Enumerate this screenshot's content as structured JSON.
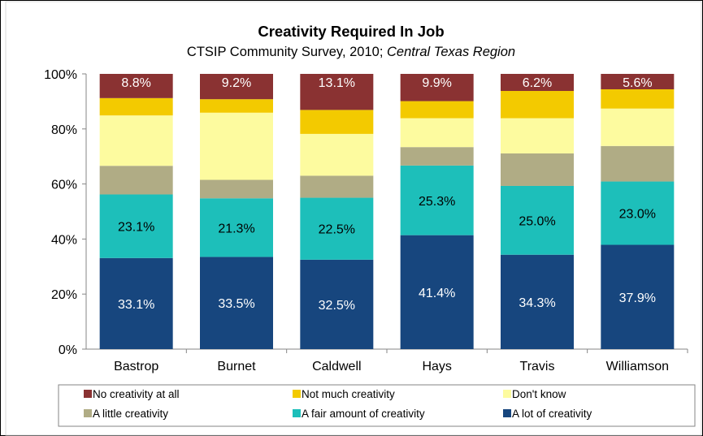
{
  "chart_data": {
    "type": "bar",
    "stacked": true,
    "title": "Creativity Required In Job",
    "subtitle_plain": "CTSIP Community Survey, 2010; ",
    "subtitle_italic": "Central Texas Region",
    "ylim": [
      0,
      100
    ],
    "yticks": [
      "0%",
      "20%",
      "40%",
      "60%",
      "80%",
      "100%"
    ],
    "categories": [
      "Bastrop",
      "Burnet",
      "Caldwell",
      "Hays",
      "Travis",
      "Williamson"
    ],
    "series": [
      {
        "name": "A lot of creativity",
        "color": "#17467E",
        "values": [
          33.1,
          33.5,
          32.5,
          41.4,
          34.3,
          37.9
        ],
        "labels": [
          "33.1%",
          "33.5%",
          "32.5%",
          "41.4%",
          "34.3%",
          "37.9%"
        ]
      },
      {
        "name": "A fair amount of creativity",
        "color": "#1DBFBA",
        "values": [
          23.1,
          21.3,
          22.5,
          25.3,
          25.0,
          23.0
        ],
        "labels": [
          "23.1%",
          "21.3%",
          "22.5%",
          "25.3%",
          "25.0%",
          "23.0%"
        ]
      },
      {
        "name": "A little creativity",
        "color": "#B0AC85",
        "values": [
          10.4,
          6.7,
          8.0,
          6.7,
          11.8,
          12.9
        ]
      },
      {
        "name": "Don't know",
        "color": "#FDFB9F",
        "values": [
          18.3,
          24.4,
          15.2,
          10.5,
          12.8,
          13.6
        ]
      },
      {
        "name": "Not much creativity",
        "color": "#F3CA00",
        "values": [
          6.3,
          4.9,
          8.7,
          6.2,
          9.9,
          7.0
        ]
      },
      {
        "name": "No creativity at all",
        "color": "#8A3232",
        "values": [
          8.8,
          9.2,
          13.1,
          9.9,
          6.2,
          5.6
        ],
        "labels": [
          "8.8%",
          "9.2%",
          "13.1%",
          "9.9%",
          "6.2%",
          "5.6%"
        ]
      }
    ],
    "legend": {
      "position": "bottom",
      "order": [
        "No creativity at all",
        "Not much creativity",
        "Don't know",
        "A little creativity",
        "A fair amount of creativity",
        "A lot of creativity"
      ]
    },
    "grid": false
  }
}
